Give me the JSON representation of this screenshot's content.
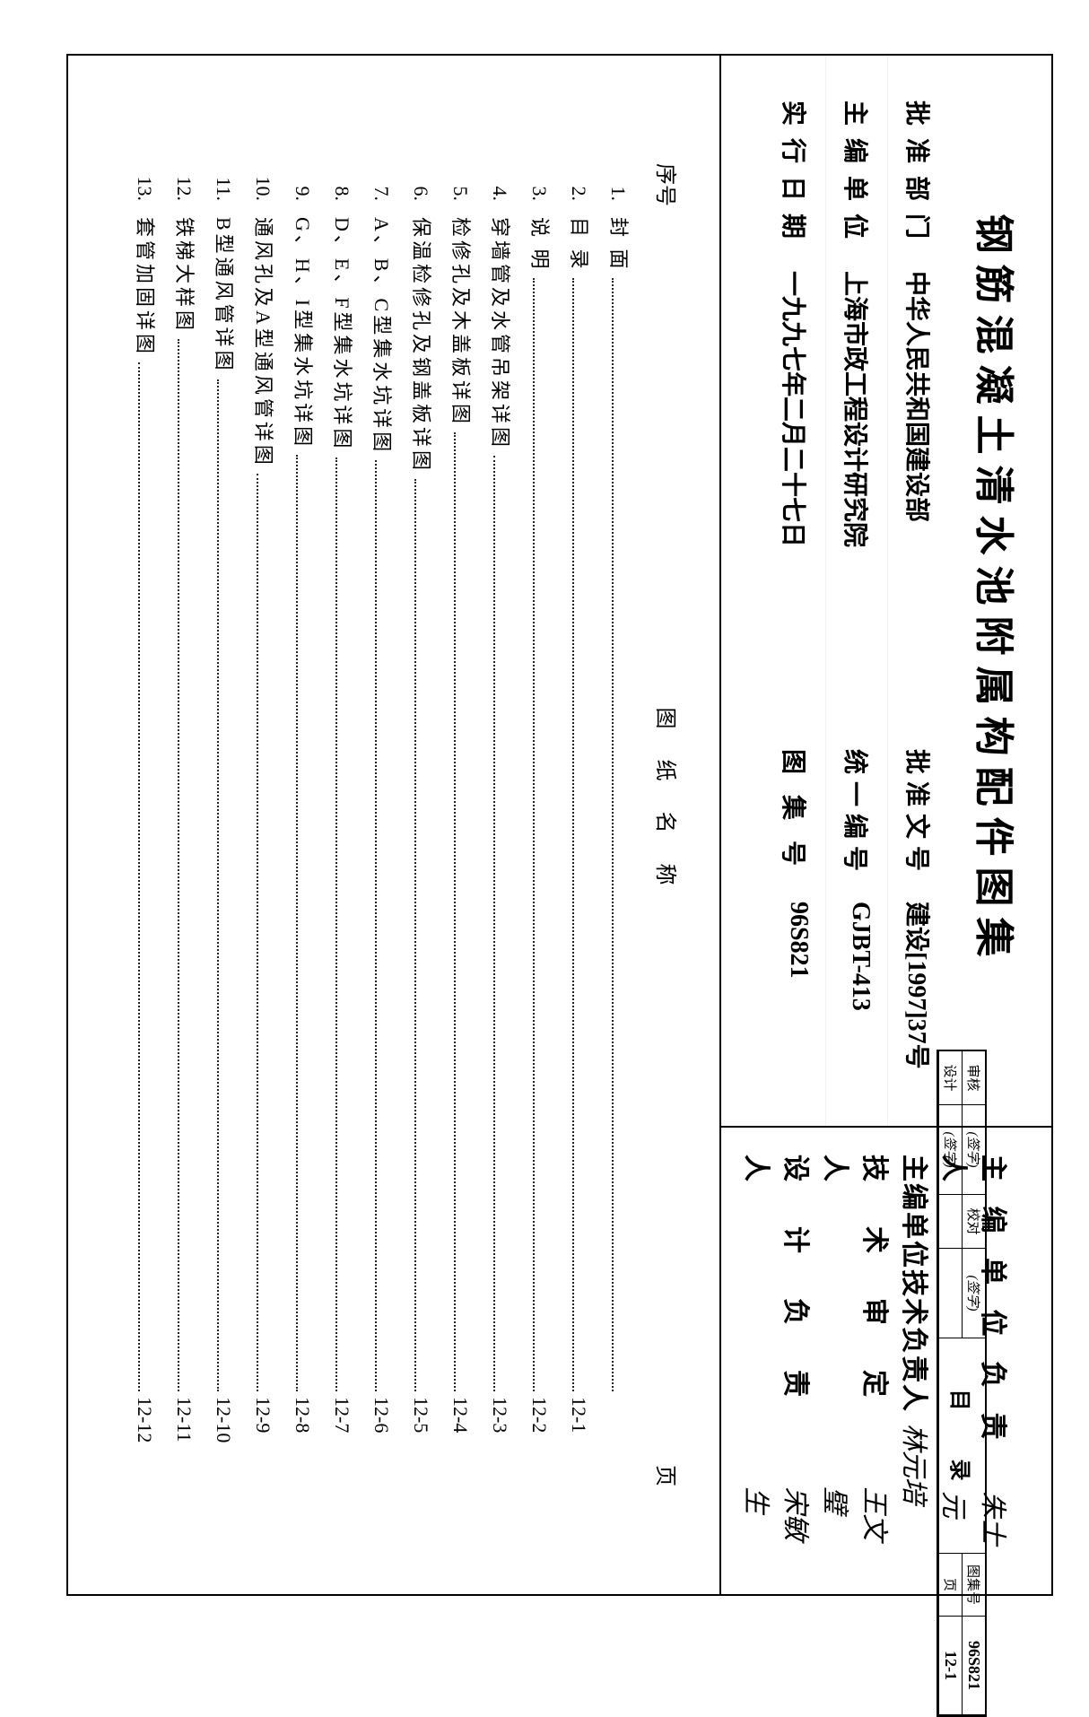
{
  "title": "钢筋混凝土清水池附属构配件图集",
  "meta": {
    "approve_dept_label": "批准部门",
    "approve_dept": "中华人民共和国建设部",
    "approve_doc_label": "批准文号",
    "approve_doc": "建设[1997]37号",
    "editor_unit_label": "主编单位",
    "editor_unit": "上海市政工程设计研究院",
    "uni_code_label": "统一编号",
    "uni_code": "GJBT-413",
    "effect_date_label": "实行日期",
    "effect_date": "一九九七年二月二十七日",
    "atlas_code_label": "图 集 号",
    "atlas_code": "96S821"
  },
  "staff": {
    "chief_label": "主 编 单 位 负 责 人",
    "chief_sig": "朱士元",
    "tech_chief_label": "主编单位技术负责人",
    "tech_chief_sig": "林元培",
    "reviewer_label": "技　术　审　定　人",
    "reviewer_sig": "王文璧",
    "designer_label": "设　计　负　责　人",
    "designer_sig": "宋敏生"
  },
  "toc": {
    "columns": {
      "seq": "序号",
      "name": "图 纸 名 称",
      "page": "页"
    },
    "rows": [
      {
        "idx": "1.",
        "name": "封 面",
        "page": ""
      },
      {
        "idx": "2.",
        "name": "目 录",
        "page": "12-1"
      },
      {
        "idx": "3.",
        "name": "说 明",
        "page": "12-2"
      },
      {
        "idx": "4.",
        "name": "穿墙管及水管吊架详图",
        "page": "12-3"
      },
      {
        "idx": "5.",
        "name": "检修孔及木盖板详图",
        "page": "12-4"
      },
      {
        "idx": "6.",
        "name": "保温检修孔及钢盖板详图",
        "page": "12-5"
      },
      {
        "idx": "7.",
        "name": "A、B、C型集水坑详图",
        "page": "12-6"
      },
      {
        "idx": "8.",
        "name": "D、E、F型集水坑详图",
        "page": "12-7"
      },
      {
        "idx": "9.",
        "name": "G、H、I型集水坑详图",
        "page": "12-8"
      },
      {
        "idx": "10.",
        "name": "通风孔及A型通风管详图",
        "page": "12-9"
      },
      {
        "idx": "11.",
        "name": "B型通风管详图",
        "page": "12-10"
      },
      {
        "idx": "12.",
        "name": "铁梯大样图",
        "page": "12-11"
      },
      {
        "idx": "13.",
        "name": "套管加固详图",
        "page": "12-12"
      }
    ]
  },
  "foot": {
    "review": "审核",
    "review_sig": "(签字)",
    "proof": "校对",
    "proof_sig": "(签字)",
    "design": "设计",
    "design_sig": "(签字)",
    "title": "目   录",
    "code_label": "图集号",
    "code": "96S821",
    "page_label": "页",
    "page": "12-1"
  }
}
